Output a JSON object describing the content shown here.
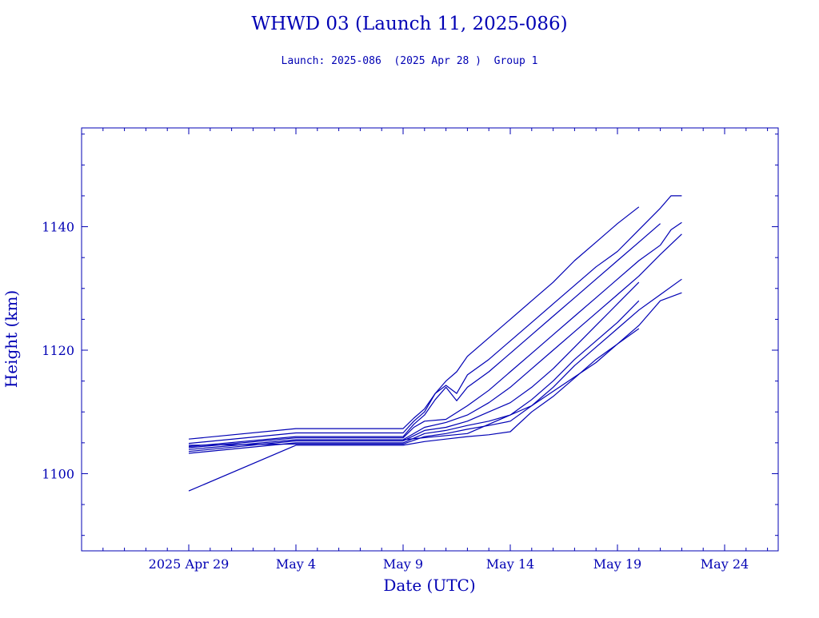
{
  "chart_data": {
    "type": "line",
    "title": "WHWD 03 (Launch 11, 2025-086)",
    "subtitle": "Launch: 2025-086  (2025 Apr 28 )  Group 1",
    "xlabel": "Date (UTC)",
    "ylabel": "Height (km)",
    "x_ticks": [
      {
        "date": "2025-04-29",
        "label": "2025 Apr 29"
      },
      {
        "date": "2025-05-04",
        "label": "May  4"
      },
      {
        "date": "2025-05-09",
        "label": "May  9"
      },
      {
        "date": "2025-05-14",
        "label": "May 14"
      },
      {
        "date": "2025-05-19",
        "label": "May 19"
      },
      {
        "date": "2025-05-24",
        "label": "May 24"
      }
    ],
    "y_ticks": [
      1100,
      1120,
      1140
    ],
    "xlim": [
      "2025-04-24",
      "2025-05-26.5"
    ],
    "ylim": [
      1087.5,
      1156
    ],
    "grid": false,
    "color": "#0000b4",
    "series": [
      {
        "x": [
          "2025-04-29",
          "2025-05-04",
          "2025-05-09",
          "2025-05-09.5",
          "2025-05-10",
          "2025-05-10.5",
          "2025-05-11",
          "2025-05-11.5",
          "2025-05-12",
          "2025-05-13",
          "2025-05-14",
          "2025-05-15",
          "2025-05-16",
          "2025-05-17",
          "2025-05-18",
          "2025-05-19",
          "2025-05-20"
        ],
        "y": [
          1105.6,
          1107.3,
          1107.3,
          1109,
          1110.5,
          1113,
          1115,
          1116.5,
          1119,
          1122,
          1125,
          1128,
          1131,
          1134.5,
          1137.5,
          1140.5,
          1143.2
        ]
      },
      {
        "x": [
          "2025-04-29",
          "2025-05-04",
          "2025-05-09",
          "2025-05-09.5",
          "2025-05-10",
          "2025-05-10.5",
          "2025-05-11",
          "2025-05-11.5",
          "2025-05-12",
          "2025-05-13",
          "2025-05-14",
          "2025-05-15",
          "2025-05-16",
          "2025-05-17",
          "2025-05-18",
          "2025-05-19",
          "2025-05-20",
          "2025-05-21",
          "2025-05-21.5",
          "2025-05-22"
        ],
        "y": [
          1104.9,
          1106.6,
          1106.6,
          1108.5,
          1110,
          1113,
          1114.3,
          1113,
          1116,
          1118.5,
          1121.5,
          1124.5,
          1127.5,
          1130.5,
          1133.5,
          1136,
          1139.5,
          1143,
          1145,
          1145
        ]
      },
      {
        "x": [
          "2025-04-29",
          "2025-05-04",
          "2025-05-09",
          "2025-05-09.5",
          "2025-05-10",
          "2025-05-10.5",
          "2025-05-11",
          "2025-05-11.5",
          "2025-05-12",
          "2025-05-13",
          "2025-05-14",
          "2025-05-15",
          "2025-05-16",
          "2025-05-17",
          "2025-05-18",
          "2025-05-19",
          "2025-05-20",
          "2025-05-21"
        ],
        "y": [
          1104.4,
          1106,
          1106,
          1108,
          1109.5,
          1112,
          1114,
          1111.8,
          1114,
          1116.5,
          1119.5,
          1122.5,
          1125.5,
          1128.5,
          1131.5,
          1134.5,
          1137.5,
          1140.5
        ]
      },
      {
        "x": [
          "2025-04-29",
          "2025-05-04",
          "2025-05-09",
          "2025-05-09.5",
          "2025-05-10",
          "2025-05-11",
          "2025-05-12",
          "2025-05-13",
          "2025-05-14",
          "2025-05-15",
          "2025-05-16",
          "2025-05-17",
          "2025-05-18",
          "2025-05-19",
          "2025-05-20",
          "2025-05-21",
          "2025-05-21.5",
          "2025-05-22"
        ],
        "y": [
          1104.2,
          1105.8,
          1105.8,
          1107.5,
          1108.5,
          1108.8,
          1111,
          1113.5,
          1116.5,
          1119.5,
          1122.5,
          1125.5,
          1128.5,
          1131.5,
          1134.5,
          1137,
          1139.5,
          1140.7
        ]
      },
      {
        "x": [
          "2025-04-29",
          "2025-05-04",
          "2025-05-09",
          "2025-05-10",
          "2025-05-11",
          "2025-05-12",
          "2025-05-13",
          "2025-05-14",
          "2025-05-15",
          "2025-05-16",
          "2025-05-17",
          "2025-05-18",
          "2025-05-19",
          "2025-05-20",
          "2025-05-21",
          "2025-05-22"
        ],
        "y": [
          1103.9,
          1105.5,
          1105.5,
          1107.5,
          1108.3,
          1109.5,
          1111.5,
          1114,
          1117,
          1120,
          1123,
          1126,
          1129,
          1132,
          1135.5,
          1138.8
        ]
      },
      {
        "x": [
          "2025-04-29",
          "2025-05-04",
          "2025-05-09",
          "2025-05-10",
          "2025-05-11",
          "2025-05-12",
          "2025-05-13",
          "2025-05-14",
          "2025-05-15",
          "2025-05-16",
          "2025-05-17",
          "2025-05-18",
          "2025-05-19",
          "2025-05-20"
        ],
        "y": [
          1103.6,
          1105.3,
          1105.3,
          1107,
          1107.5,
          1108.5,
          1110,
          1111.5,
          1114,
          1117,
          1120.5,
          1124,
          1127.5,
          1131
        ]
      },
      {
        "x": [
          "2025-04-29",
          "2025-05-04",
          "2025-05-09",
          "2025-05-10",
          "2025-05-11",
          "2025-05-12",
          "2025-05-13",
          "2025-05-14",
          "2025-05-15",
          "2025-05-16",
          "2025-05-17",
          "2025-05-18",
          "2025-05-19",
          "2025-05-20"
        ],
        "y": [
          1103.3,
          1105,
          1105,
          1106.5,
          1107,
          1107.8,
          1108.5,
          1109.5,
          1112,
          1115,
          1118.5,
          1121.5,
          1124.5,
          1128
        ]
      },
      {
        "x": [
          "2025-04-29",
          "2025-05-04",
          "2025-05-09",
          "2025-05-10",
          "2025-05-11",
          "2025-05-12",
          "2025-05-13",
          "2025-05-14",
          "2025-05-15",
          "2025-05-16",
          "2025-05-17",
          "2025-05-18",
          "2025-05-19",
          "2025-05-20",
          "2025-05-21",
          "2025-05-22"
        ],
        "y": [
          1104.6,
          1104.8,
          1104.8,
          1106,
          1106.5,
          1107.2,
          1107.8,
          1108.5,
          1111,
          1114,
          1117.5,
          1120.5,
          1123.5,
          1126.5,
          1129,
          1131.5
        ]
      },
      {
        "x": [
          "2025-04-29",
          "2025-05-04",
          "2025-05-09",
          "2025-05-10",
          "2025-05-11",
          "2025-05-12",
          "2025-05-13",
          "2025-05-14",
          "2025-05-15",
          "2025-05-16",
          "2025-05-17",
          "2025-05-18",
          "2025-05-19",
          "2025-05-20"
        ],
        "y": [
          1097.2,
          1104.6,
          1104.6,
          1105.2,
          1105.6,
          1106,
          1106.3,
          1106.8,
          1110,
          1112.5,
          1115.5,
          1118.5,
          1121,
          1123.5
        ]
      },
      {
        "x": [
          "2025-05-09",
          "2025-05-12",
          "2025-05-15",
          "2025-05-18",
          "2025-05-20",
          "2025-05-21",
          "2025-05-22"
        ],
        "y": [
          1105.5,
          1106.5,
          1111,
          1118,
          1124,
          1128,
          1129.3
        ]
      }
    ]
  }
}
